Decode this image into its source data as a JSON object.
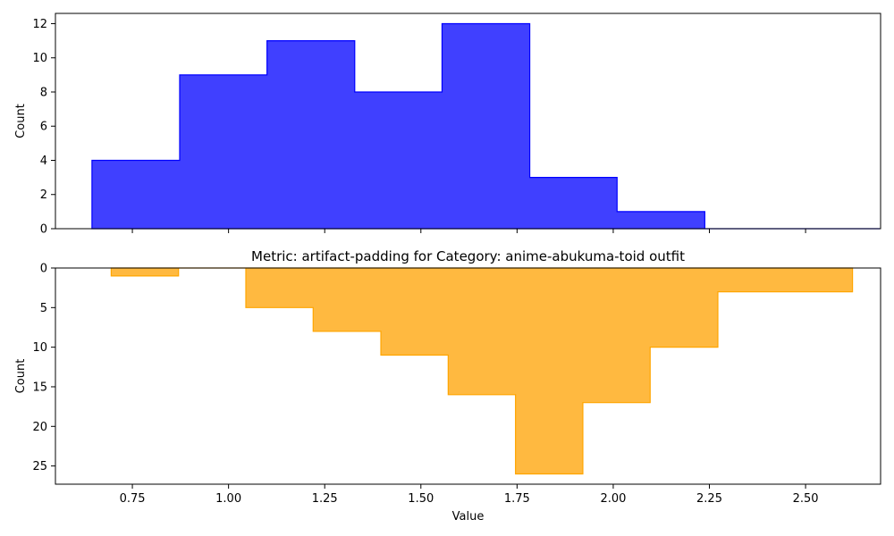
{
  "chart_data": [
    {
      "type": "histogram",
      "title": "",
      "xlabel": "",
      "ylabel": "Count",
      "xlim": [
        0.55,
        2.695
      ],
      "ylim": [
        0,
        12.6
      ],
      "y_inverted": false,
      "y_ticks": [
        0,
        2,
        4,
        6,
        8,
        10,
        12
      ],
      "x_ticks": [
        0.75,
        1.0,
        1.25,
        1.5,
        1.75,
        2.0,
        2.25,
        2.5
      ],
      "x_tick_labels_visible": false,
      "color_fill": "#4040ff",
      "color_edge": "#0000ff",
      "series": [
        {
          "bin_edges": [
            0.645,
            0.873,
            1.1,
            1.328,
            1.555,
            1.783,
            2.01,
            2.238,
            2.465,
            2.693
          ],
          "values": [
            4,
            9,
            11,
            8,
            12,
            3,
            1,
            0,
            0
          ]
        }
      ]
    },
    {
      "type": "histogram",
      "title": "Metric: artifact-padding for Category: anime-abukuma-toid outfit",
      "xlabel": "Value",
      "ylabel": "Count",
      "xlim": [
        0.55,
        2.695
      ],
      "ylim": [
        0,
        27.3
      ],
      "y_inverted": true,
      "y_ticks": [
        0,
        5,
        10,
        15,
        20,
        25
      ],
      "x_ticks": [
        0.75,
        1.0,
        1.25,
        1.5,
        1.75,
        2.0,
        2.25,
        2.5
      ],
      "x_tick_labels": [
        "0.75",
        "1.00",
        "1.25",
        "1.50",
        "1.75",
        "2.00",
        "2.25",
        "2.50"
      ],
      "x_tick_labels_visible": true,
      "color_fill": "#ffb940",
      "color_edge": "#ffa500",
      "series": [
        {
          "bin_edges": [
            0.695,
            0.87,
            1.045,
            1.22,
            1.396,
            1.571,
            1.746,
            1.921,
            2.096,
            2.272,
            2.447,
            2.622
          ],
          "values": [
            1,
            0,
            5,
            8,
            11,
            16,
            26,
            17,
            10,
            3,
            3
          ]
        }
      ]
    }
  ]
}
